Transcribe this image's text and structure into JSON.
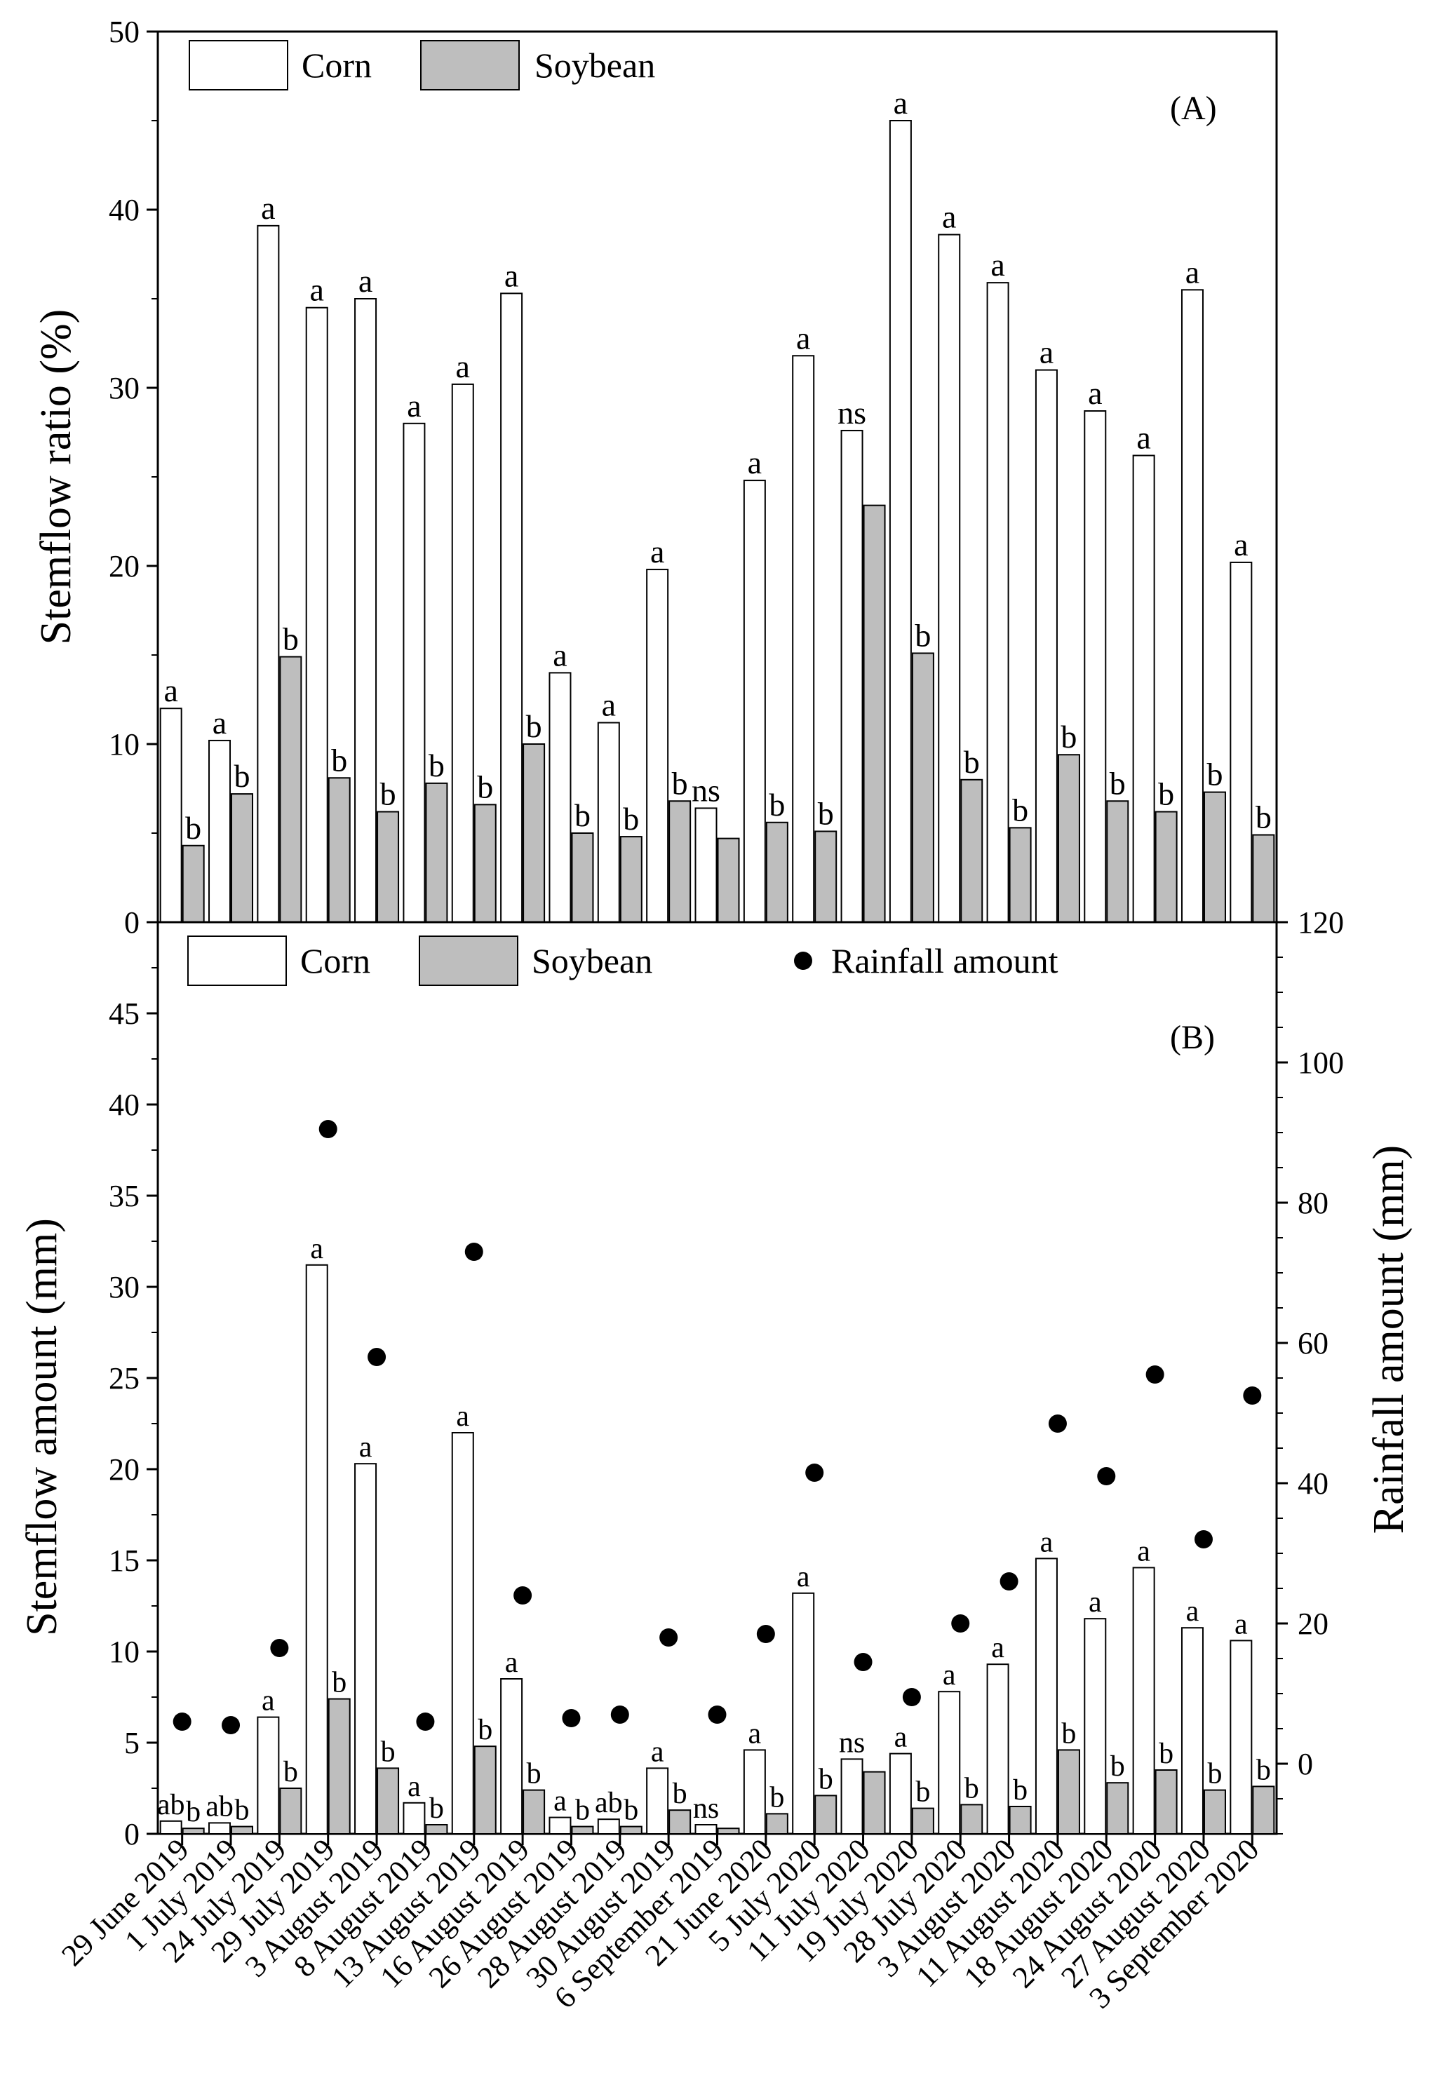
{
  "categories": [
    "29 June 2019",
    "1 July 2019",
    "24 July 2019",
    "29 July 2019",
    "3 August 2019",
    "8 August 2019",
    "13 August 2019",
    "16 August 2019",
    "26 August 2019",
    "28 August 2019",
    "30 August 2019",
    "6 September 2019",
    "21 June 2020",
    "5 July 2020",
    "11 July 2020",
    "19 July 2020",
    "28 July 2020",
    "3 August 2020",
    "11 August 2020",
    "18 August 2020",
    "24 August 2020",
    "27 August 2020",
    "3 September 2020"
  ],
  "colors": {
    "corn": "#ffffff",
    "soybean": "#bebebe",
    "rain": "#000000",
    "stroke": "#000000"
  },
  "chart_data": [
    {
      "type": "bar",
      "panel": "(A)",
      "ylabel": "Stemflow ratio (%)",
      "ylim": [
        0,
        50
      ],
      "yticks": [
        "0",
        "10",
        "20",
        "30",
        "40",
        "50"
      ],
      "legend": [
        "Corn",
        "Soybean"
      ],
      "series": [
        {
          "name": "Corn",
          "values": [
            12.0,
            10.2,
            39.1,
            34.5,
            35.0,
            28.0,
            30.2,
            35.3,
            14.0,
            11.2,
            19.8,
            6.4,
            24.8,
            31.8,
            27.6,
            45.0,
            38.6,
            35.9,
            31.0,
            28.7,
            26.2,
            35.5,
            20.2
          ],
          "labels": [
            "a",
            "a",
            "a",
            "a",
            "a",
            "a",
            "a",
            "a",
            "a",
            "a",
            "a",
            "ns",
            "a",
            "a",
            "ns",
            "a",
            "a",
            "a",
            "a",
            "a",
            "a",
            "a",
            "a"
          ]
        },
        {
          "name": "Soybean",
          "values": [
            4.3,
            7.2,
            14.9,
            8.1,
            6.2,
            7.8,
            6.6,
            10.0,
            5.0,
            4.8,
            6.8,
            4.7,
            5.6,
            5.1,
            23.4,
            15.1,
            8.0,
            5.3,
            9.4,
            6.8,
            6.2,
            7.3,
            4.9
          ],
          "labels": [
            "b",
            "b",
            "b",
            "b",
            "b",
            "b",
            "b",
            "b",
            "b",
            "b",
            "b",
            "",
            "b",
            "b",
            "",
            "b",
            "b",
            "b",
            "b",
            "b",
            "b",
            "b",
            "b"
          ]
        }
      ]
    },
    {
      "type": "bar",
      "panel": "(B)",
      "ylabel": "Stemflow amount (mm)",
      "ylim": [
        0,
        50
      ],
      "yticks": [
        "0",
        "5",
        "10",
        "15",
        "20",
        "25",
        "30",
        "35",
        "40",
        "45"
      ],
      "y2label": "Rainfall amount (mm)",
      "y2lim": [
        -10,
        120
      ],
      "y2ticks": [
        "0",
        "20",
        "40",
        "60",
        "80",
        "100",
        "120"
      ],
      "legend": [
        "Corn",
        "Soybean",
        "Rainfall amount"
      ],
      "series": [
        {
          "name": "Corn",
          "values": [
            0.7,
            0.6,
            6.4,
            31.2,
            20.3,
            1.7,
            22.0,
            8.5,
            0.9,
            0.8,
            3.6,
            0.5,
            4.6,
            13.2,
            4.1,
            4.4,
            7.8,
            9.3,
            15.1,
            11.8,
            14.6,
            11.3,
            10.6
          ],
          "labels": [
            "ab",
            "ab",
            "a",
            "a",
            "a",
            "a",
            "a",
            "a",
            "a",
            "ab",
            "a",
            "ns",
            "a",
            "a",
            "ns",
            "a",
            "a",
            "a",
            "a",
            "a",
            "a",
            "a",
            "a"
          ]
        },
        {
          "name": "Soybean",
          "values": [
            0.3,
            0.4,
            2.5,
            7.4,
            3.6,
            0.5,
            4.8,
            2.4,
            0.4,
            0.4,
            1.3,
            0.3,
            1.1,
            2.1,
            3.4,
            1.4,
            1.6,
            1.5,
            4.6,
            2.8,
            3.5,
            2.4,
            2.6
          ],
          "labels": [
            "b",
            "b",
            "b",
            "b",
            "b",
            "b",
            "b",
            "b",
            "b",
            "b",
            "b",
            "",
            "b",
            "b",
            "",
            "b",
            "b",
            "b",
            "b",
            "b",
            "b",
            "b",
            "b"
          ]
        },
        {
          "name": "Rainfall amount",
          "axis": "y2",
          "values": [
            6,
            5.5,
            16.5,
            90.5,
            58,
            6,
            73,
            24,
            6.5,
            7,
            18,
            7,
            18.5,
            41.5,
            14.5,
            9.5,
            20,
            26,
            48.5,
            41,
            55.5,
            32,
            52.5
          ]
        }
      ]
    }
  ]
}
